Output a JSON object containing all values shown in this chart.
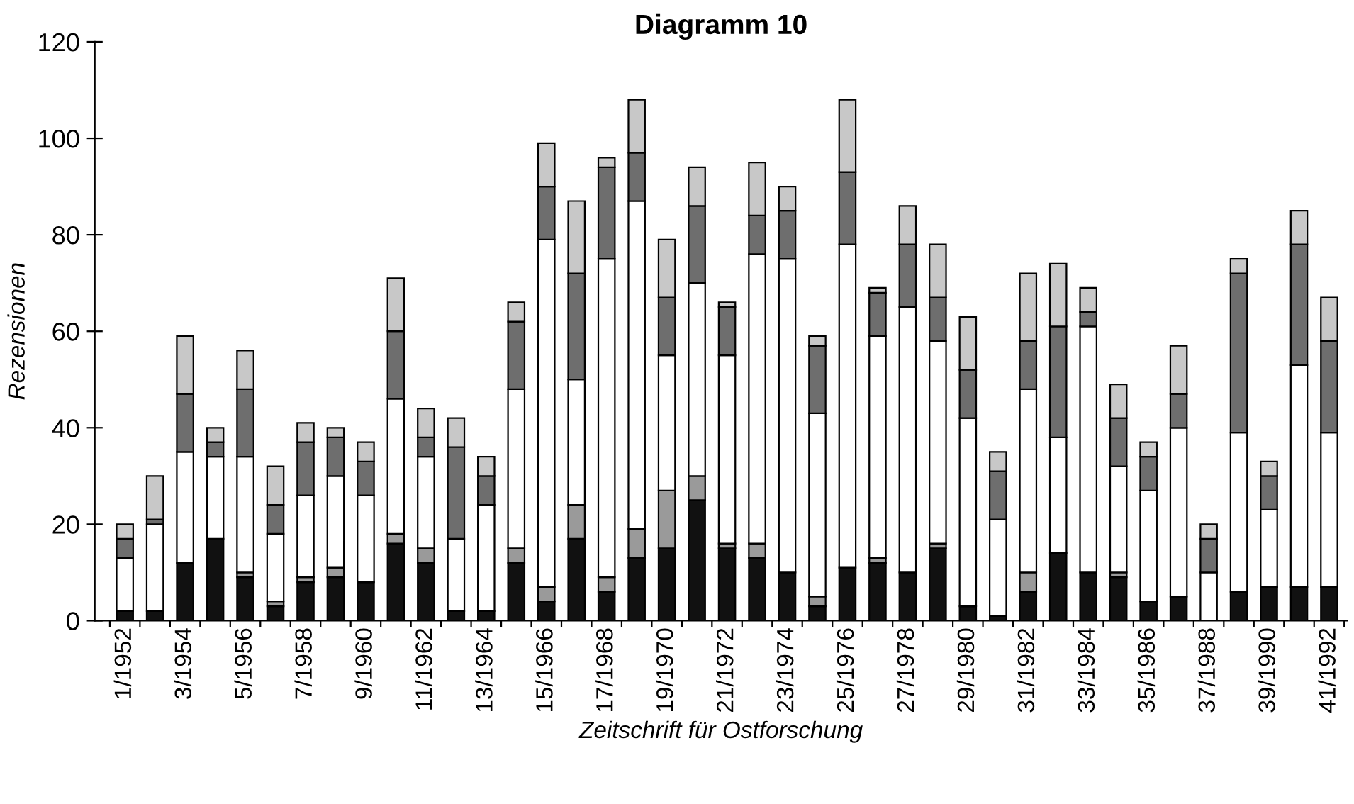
{
  "chart_data": {
    "type": "bar",
    "stacked": true,
    "title": "Diagramm 10",
    "xlabel": "Zeitschrift für Ostforschung",
    "ylabel": "Rezensionen",
    "categories": [
      "1/1952",
      null,
      "3/1954",
      null,
      "5/1956",
      null,
      "7/1958",
      null,
      "9/1960",
      null,
      "11/1962",
      null,
      "13/1964",
      null,
      "15/1966",
      null,
      "17/1968",
      null,
      "19/1970",
      null,
      "21/1972",
      null,
      "23/1974",
      null,
      "25/1976",
      null,
      "27/1978",
      null,
      "29/1980",
      null,
      "31/1982",
      null,
      "33/1984",
      null,
      "35/1986",
      null,
      "37/1988",
      null,
      "39/1990",
      null,
      "41/1992"
    ],
    "series": [
      {
        "color": "#111111",
        "values": [
          2,
          2,
          12,
          17,
          9,
          3,
          8,
          9,
          8,
          16,
          12,
          2,
          2,
          12,
          4,
          17,
          6,
          13,
          15,
          25,
          15,
          13,
          10,
          3,
          11,
          12,
          10,
          15,
          3,
          1,
          6,
          14,
          10,
          9,
          4,
          5,
          0,
          6,
          7,
          7,
          7
        ]
      },
      {
        "color": "#9a9a9a",
        "values": [
          0,
          0,
          0,
          0,
          1,
          1,
          1,
          2,
          0,
          2,
          3,
          0,
          0,
          3,
          3,
          7,
          3,
          6,
          12,
          5,
          1,
          3,
          0,
          2,
          0,
          1,
          0,
          1,
          0,
          0,
          4,
          0,
          0,
          1,
          0,
          0,
          0,
          0,
          0,
          0,
          0
        ]
      },
      {
        "color": "#ffffff",
        "values": [
          11,
          18,
          23,
          17,
          24,
          14,
          17,
          19,
          18,
          28,
          19,
          15,
          22,
          33,
          72,
          26,
          66,
          68,
          28,
          40,
          39,
          60,
          65,
          38,
          67,
          46,
          55,
          42,
          39,
          20,
          38,
          24,
          51,
          22,
          23,
          35,
          10,
          33,
          16,
          46,
          32
        ]
      },
      {
        "color": "#6e6e6e",
        "values": [
          4,
          1,
          12,
          3,
          14,
          6,
          11,
          8,
          7,
          14,
          4,
          19,
          6,
          14,
          11,
          22,
          19,
          10,
          12,
          16,
          10,
          8,
          10,
          14,
          15,
          9,
          13,
          9,
          10,
          10,
          10,
          23,
          3,
          10,
          7,
          7,
          7,
          33,
          7,
          25,
          19
        ]
      },
      {
        "color": "#c8c8c8",
        "values": [
          3,
          9,
          12,
          3,
          8,
          8,
          4,
          2,
          4,
          11,
          6,
          6,
          4,
          4,
          9,
          15,
          2,
          11,
          12,
          8,
          1,
          11,
          5,
          2,
          15,
          1,
          8,
          11,
          11,
          4,
          14,
          13,
          5,
          7,
          3,
          10,
          3,
          3,
          3,
          7,
          9
        ]
      }
    ],
    "ylim": [
      0,
      120
    ],
    "yticks": [
      0,
      20,
      40,
      60,
      80,
      100,
      120
    ],
    "grid": false,
    "legend": false
  }
}
